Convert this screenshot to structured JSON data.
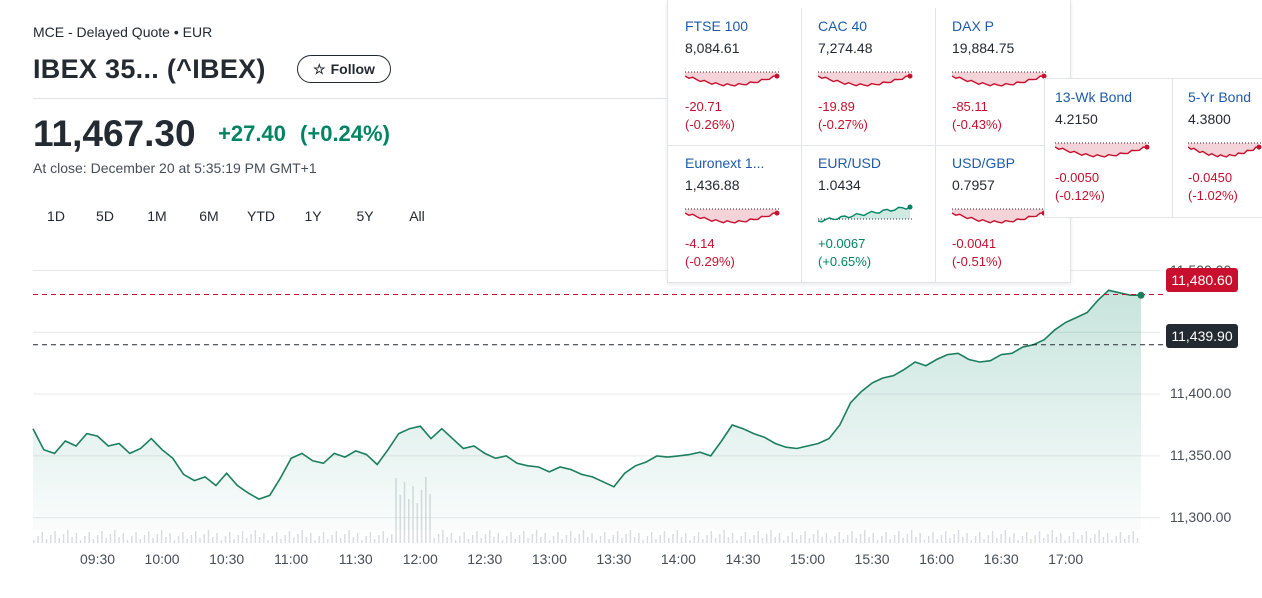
{
  "header": {
    "exchange_line": "MCE - Delayed Quote • EUR",
    "title": "IBEX 35... (^IBEX)",
    "follow_label": "Follow",
    "price": "11,467.30",
    "change": "+27.40",
    "change_pct": "(+0.24%)",
    "close_line": "At close: December 20 at 5:35:19 PM GMT+1"
  },
  "ranges": [
    "1D",
    "5D",
    "1M",
    "6M",
    "YTD",
    "1Y",
    "5Y",
    "All"
  ],
  "price_tags": {
    "last": "11,480.60",
    "previous_close": "11,439.90"
  },
  "colors": {
    "up": "#008463",
    "down": "#c8102e",
    "link": "#1e5ca8"
  },
  "markets": [
    {
      "name": "FTSE 100",
      "value": "8,084.61",
      "change": "-20.71",
      "change_pct": "(-0.26%)",
      "direction": "down"
    },
    {
      "name": "CAC 40",
      "value": "7,274.48",
      "change": "-19.89",
      "change_pct": "(-0.27%)",
      "direction": "down"
    },
    {
      "name": "DAX P",
      "value": "19,884.75",
      "change": "-85.11",
      "change_pct": "(-0.43%)",
      "direction": "down"
    },
    {
      "name": "Euronext 1...",
      "value": "1,436.88",
      "change": "-4.14",
      "change_pct": "(-0.29%)",
      "direction": "down"
    },
    {
      "name": "EUR/USD",
      "value": "1.0434",
      "change": "+0.0067",
      "change_pct": "(+0.65%)",
      "direction": "up"
    },
    {
      "name": "USD/GBP",
      "value": "0.7957",
      "change": "-0.0041",
      "change_pct": "(-0.51%)",
      "direction": "down"
    }
  ],
  "bonds": [
    {
      "name": "13-Wk Bond",
      "value": "4.2150",
      "change": "-0.0050",
      "change_pct": "(-0.12%)",
      "direction": "down"
    },
    {
      "name": "5-Yr Bond",
      "value": "4.3800",
      "change": "-0.0450",
      "change_pct": "(-1.02%)",
      "direction": "down"
    }
  ],
  "chart_data": {
    "type": "area",
    "title": "",
    "xlabel": "",
    "ylabel": "",
    "x_ticks": [
      "09:30",
      "10:00",
      "10:30",
      "11:00",
      "11:30",
      "12:00",
      "12:30",
      "13:00",
      "13:30",
      "14:00",
      "14:30",
      "15:00",
      "15:30",
      "16:00",
      "16:30",
      "17:00"
    ],
    "y_ticks": [
      "11,300.00",
      "11,350.00",
      "11,400.00",
      "11,450.00",
      "11,500.00"
    ],
    "ylim": [
      11290,
      11515
    ],
    "xlim": [
      "09:00",
      "17:35"
    ],
    "previous_close": 11439.9,
    "last": 11480.6,
    "series": [
      {
        "x": [
          "09:00",
          "09:05",
          "09:10",
          "09:15",
          "09:20",
          "09:25",
          "09:30",
          "09:35",
          "09:40",
          "09:45",
          "09:50",
          "09:55",
          "10:00",
          "10:05",
          "10:10",
          "10:15",
          "10:20",
          "10:25",
          "10:30",
          "10:35",
          "10:40",
          "10:45",
          "10:50",
          "10:55",
          "11:00",
          "11:05",
          "11:10",
          "11:15",
          "11:20",
          "11:25",
          "11:30",
          "11:35",
          "11:40",
          "11:45",
          "11:50",
          "11:55",
          "12:00",
          "12:05",
          "12:10",
          "12:15",
          "12:20",
          "12:25",
          "12:30",
          "12:35",
          "12:40",
          "12:45",
          "12:50",
          "12:55",
          "13:00",
          "13:05",
          "13:10",
          "13:15",
          "13:20",
          "13:25",
          "13:30",
          "13:35",
          "13:40",
          "13:45",
          "13:50",
          "13:55",
          "14:00",
          "14:05",
          "14:10",
          "14:15",
          "14:20",
          "14:25",
          "14:30",
          "14:35",
          "14:40",
          "14:45",
          "14:50",
          "14:55",
          "15:00",
          "15:05",
          "15:10",
          "15:15",
          "15:20",
          "15:25",
          "15:30",
          "15:35",
          "15:40",
          "15:45",
          "15:50",
          "15:55",
          "16:00",
          "16:05",
          "16:10",
          "16:15",
          "16:20",
          "16:25",
          "16:30",
          "16:35",
          "16:40",
          "16:45",
          "16:50",
          "16:55",
          "17:00",
          "17:05",
          "17:10",
          "17:15",
          "17:20",
          "17:25",
          "17:30",
          "17:35"
        ],
        "values": [
          11372,
          11355,
          11352,
          11362,
          11358,
          11368,
          11366,
          11358,
          11360,
          11352,
          11356,
          11364,
          11355,
          11348,
          11335,
          11330,
          11333,
          11326,
          11336,
          11326,
          11320,
          11315,
          11318,
          11332,
          11348,
          11352,
          11346,
          11344,
          11352,
          11349,
          11354,
          11351,
          11343,
          11355,
          11368,
          11372,
          11374,
          11364,
          11372,
          11364,
          11356,
          11358,
          11352,
          11348,
          11350,
          11344,
          11342,
          11341,
          11337,
          11341,
          11339,
          11335,
          11333,
          11329,
          11325,
          11336,
          11342,
          11345,
          11350,
          11349,
          11350,
          11351,
          11353,
          11350,
          11362,
          11375,
          11372,
          11368,
          11365,
          11360,
          11357,
          11356,
          11358,
          11360,
          11364,
          11375,
          11393,
          11402,
          11409,
          11413,
          11415,
          11420,
          11426,
          11423,
          11428,
          11432,
          11433,
          11428,
          11426,
          11427,
          11432,
          11433,
          11438,
          11440,
          11444,
          11452,
          11458,
          11462,
          11466,
          11476,
          11484,
          11482,
          11480,
          11480
        ]
      }
    ]
  }
}
